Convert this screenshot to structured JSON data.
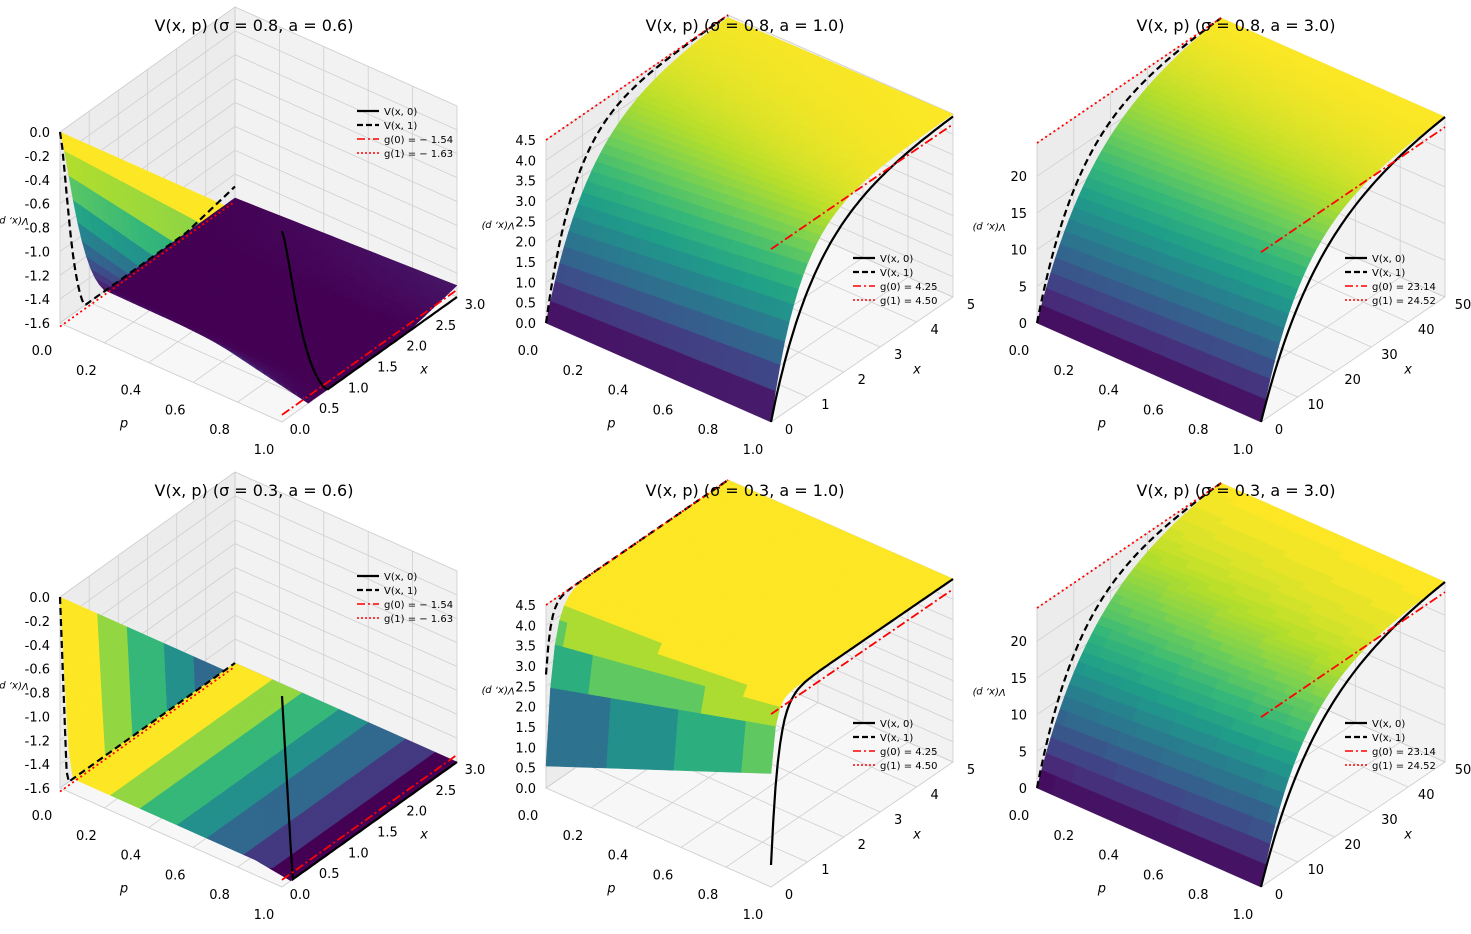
{
  "figure_title": "",
  "colormap": "viridis",
  "colors": {
    "v0_line": "#000000",
    "v1_line": "#000000",
    "g0_line": "#ff0000",
    "g1_line": "#ff0000",
    "pane": "#f2f2f2",
    "grid": "#cfcfcf"
  },
  "chart_data": [
    {
      "type": "surface3d",
      "title": "V(x, p) (σ = 0.8, a = 0.6)",
      "sigma": 0.8,
      "a": 0.6,
      "xlabel": "x",
      "ylabel": "p",
      "zlabel": "V(x, p)",
      "x_ticks": [
        "0.0",
        "0.5",
        "1.0",
        "1.5",
        "2.0",
        "2.5",
        "3.0"
      ],
      "p_ticks": [
        "0.0",
        "0.2",
        "0.4",
        "0.6",
        "0.8",
        "1.0"
      ],
      "z_ticks": [
        "-1.6",
        "-1.4",
        "-1.2",
        "-1.0",
        "-0.8",
        "-0.6",
        "-0.4",
        "-0.2",
        "0.0"
      ],
      "xlim": [
        0,
        3
      ],
      "zlim": [
        -1.6,
        0
      ],
      "g0": -1.54,
      "g1": -1.63,
      "legend": [
        "V(x, 0)",
        "V(x, 1)",
        "g(0) = − 1.54",
        "g(1) = − 1.63"
      ]
    },
    {
      "type": "surface3d",
      "title": "V(x, p) (σ = 0.8, a = 1.0)",
      "sigma": 0.8,
      "a": 1.0,
      "xlabel": "x",
      "ylabel": "p",
      "zlabel": "V(x, p)",
      "x_ticks": [
        "0",
        "1",
        "2",
        "3",
        "4",
        "5"
      ],
      "p_ticks": [
        "0.0",
        "0.2",
        "0.4",
        "0.6",
        "0.8",
        "1.0"
      ],
      "z_ticks": [
        "0.0",
        "0.5",
        "1.0",
        "1.5",
        "2.0",
        "2.5",
        "3.0",
        "3.5",
        "4.0",
        "4.5"
      ],
      "xlim": [
        0,
        5
      ],
      "zlim": [
        0,
        4.5
      ],
      "g0": 4.25,
      "g1": 4.5,
      "legend": [
        "V(x, 0)",
        "V(x, 1)",
        "g(0) = 4.25",
        "g(1) = 4.50"
      ]
    },
    {
      "type": "surface3d",
      "title": "V(x, p) (σ = 0.8, a = 3.0)",
      "sigma": 0.8,
      "a": 3.0,
      "xlabel": "x",
      "ylabel": "p",
      "zlabel": "V(x, p)",
      "x_ticks": [
        "0",
        "10",
        "20",
        "30",
        "40",
        "50"
      ],
      "p_ticks": [
        "0.0",
        "0.2",
        "0.4",
        "0.6",
        "0.8",
        "1.0"
      ],
      "z_ticks": [
        "0",
        "5",
        "10",
        "15",
        "20"
      ],
      "xlim": [
        0,
        50
      ],
      "zlim": [
        0,
        24.52
      ],
      "g0": 23.14,
      "g1": 24.52,
      "legend": [
        "V(x, 0)",
        "V(x, 1)",
        "g(0) = 23.14",
        "g(1) = 24.52"
      ]
    },
    {
      "type": "surface3d",
      "title": "V(x, p) (σ = 0.3, a = 0.6)",
      "sigma": 0.3,
      "a": 0.6,
      "xlabel": "x",
      "ylabel": "p",
      "zlabel": "V(x, p)",
      "x_ticks": [
        "0.0",
        "0.5",
        "1.0",
        "1.5",
        "2.0",
        "2.5",
        "3.0"
      ],
      "p_ticks": [
        "0.0",
        "0.2",
        "0.4",
        "0.6",
        "0.8",
        "1.0"
      ],
      "z_ticks": [
        "-1.6",
        "-1.4",
        "-1.2",
        "-1.0",
        "-0.8",
        "-0.6",
        "-0.4",
        "-0.2",
        "0.0"
      ],
      "xlim": [
        0,
        3
      ],
      "zlim": [
        -1.6,
        0
      ],
      "g0": -1.54,
      "g1": -1.63,
      "legend": [
        "V(x, 0)",
        "V(x, 1)",
        "g(0) = − 1.54",
        "g(1) = − 1.63"
      ]
    },
    {
      "type": "surface3d",
      "title": "V(x, p) (σ = 0.3, a = 1.0)",
      "sigma": 0.3,
      "a": 1.0,
      "xlabel": "x",
      "ylabel": "p",
      "zlabel": "V(x, p)",
      "x_ticks": [
        "0",
        "1",
        "2",
        "3",
        "4",
        "5"
      ],
      "p_ticks": [
        "0.0",
        "0.2",
        "0.4",
        "0.6",
        "0.8",
        "1.0"
      ],
      "z_ticks": [
        "0.0",
        "0.5",
        "1.0",
        "1.5",
        "2.0",
        "2.5",
        "3.0",
        "3.5",
        "4.0",
        "4.5"
      ],
      "xlim": [
        0,
        5
      ],
      "zlim": [
        0,
        4.5
      ],
      "g0": 4.25,
      "g1": 4.5,
      "legend": [
        "V(x, 0)",
        "V(x, 1)",
        "g(0) = 4.25",
        "g(1) = 4.50"
      ]
    },
    {
      "type": "surface3d",
      "title": "V(x, p) (σ = 0.3, a = 3.0)",
      "sigma": 0.3,
      "a": 3.0,
      "xlabel": "x",
      "ylabel": "p",
      "zlabel": "V(x, p)",
      "x_ticks": [
        "0",
        "10",
        "20",
        "30",
        "40",
        "50"
      ],
      "p_ticks": [
        "0.0",
        "0.2",
        "0.4",
        "0.6",
        "0.8",
        "1.0"
      ],
      "z_ticks": [
        "0",
        "5",
        "10",
        "15",
        "20"
      ],
      "xlim": [
        0,
        50
      ],
      "zlim": [
        0,
        24.52
      ],
      "g0": 23.14,
      "g1": 24.52,
      "legend": [
        "V(x, 0)",
        "V(x, 1)",
        "g(0) = 23.14",
        "g(1) = 24.52"
      ]
    }
  ]
}
